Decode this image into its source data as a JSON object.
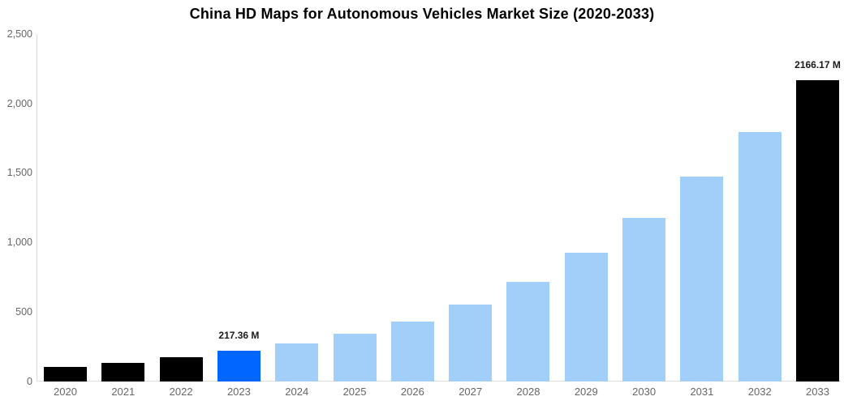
{
  "chart_data": {
    "type": "bar",
    "title": "China HD Maps for Autonomous Vehicles Market Size (2020-2033)",
    "xlabel": "",
    "ylabel": "",
    "unit": "M",
    "ylim": [
      0,
      2500
    ],
    "grid": false,
    "legend_position": "none",
    "categories": [
      "2020",
      "2021",
      "2022",
      "2023",
      "2024",
      "2025",
      "2026",
      "2027",
      "2028",
      "2029",
      "2030",
      "2031",
      "2032",
      "2033"
    ],
    "values": [
      105,
      133,
      172,
      217.36,
      270,
      340,
      430,
      550,
      715,
      925,
      1175,
      1475,
      1795,
      2166.17
    ],
    "y_tick_values": [
      0,
      500,
      1000,
      1500,
      2000,
      2500
    ],
    "y_tick_labels": [
      "0",
      "500",
      "1,000",
      "1,500",
      "2,000",
      "2,500"
    ],
    "bar_colors": [
      "#000000",
      "#000000",
      "#000000",
      "#0066ff",
      "#a2cefa",
      "#a2cefa",
      "#a2cefa",
      "#a2cefa",
      "#a2cefa",
      "#a2cefa",
      "#a2cefa",
      "#a2cefa",
      "#a2cefa",
      "#000000"
    ],
    "data_labels": [
      "",
      "",
      "",
      "217.36 M",
      "",
      "",
      "",
      "",
      "",
      "",
      "",
      "",
      "",
      "2166.17 M"
    ]
  },
  "colors": {
    "highlight_bar": "#0066ff",
    "forecast_bar": "#a2cefa",
    "dark_bar": "#000000",
    "axis_line": "#d9d9d9",
    "baseline": "#e0e0e0",
    "tick_label_text": "#666666",
    "data_label_text": "#1a1a1a",
    "title_text": "#000000",
    "background": "#ffffff"
  }
}
